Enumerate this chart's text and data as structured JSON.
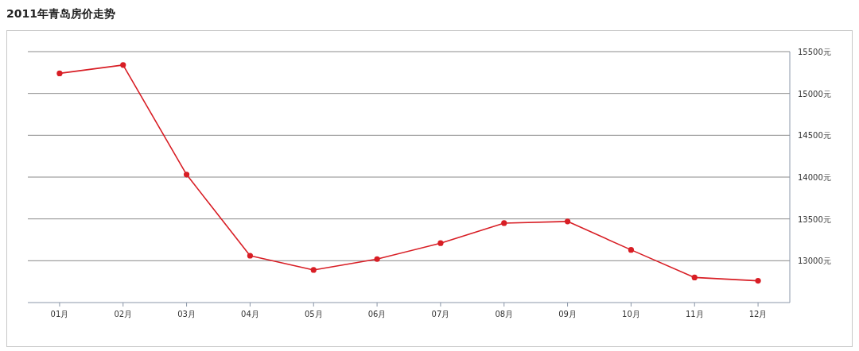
{
  "chart_data": {
    "type": "line",
    "title": "2011年青岛房价走势",
    "categories": [
      "01月",
      "02月",
      "03月",
      "04月",
      "05月",
      "06月",
      "07月",
      "08月",
      "09月",
      "10月",
      "11月",
      "12月"
    ],
    "series": [
      {
        "color": "#d81e25",
        "values": [
          15240,
          15340,
          14030,
          13060,
          12890,
          13020,
          13210,
          13450,
          13470,
          13130,
          12800,
          12760
        ]
      }
    ],
    "ylim": [
      12500,
      15500
    ],
    "yticks": [
      {
        "value": 13000,
        "label": "13000元"
      },
      {
        "value": 13500,
        "label": "13500元"
      },
      {
        "value": 14000,
        "label": "14000元"
      },
      {
        "value": 14500,
        "label": "14500元"
      },
      {
        "value": 15000,
        "label": "15000元"
      },
      {
        "value": 15500,
        "label": "15500元"
      }
    ],
    "grid": "y",
    "marker": "circle",
    "line_style": "solid"
  }
}
